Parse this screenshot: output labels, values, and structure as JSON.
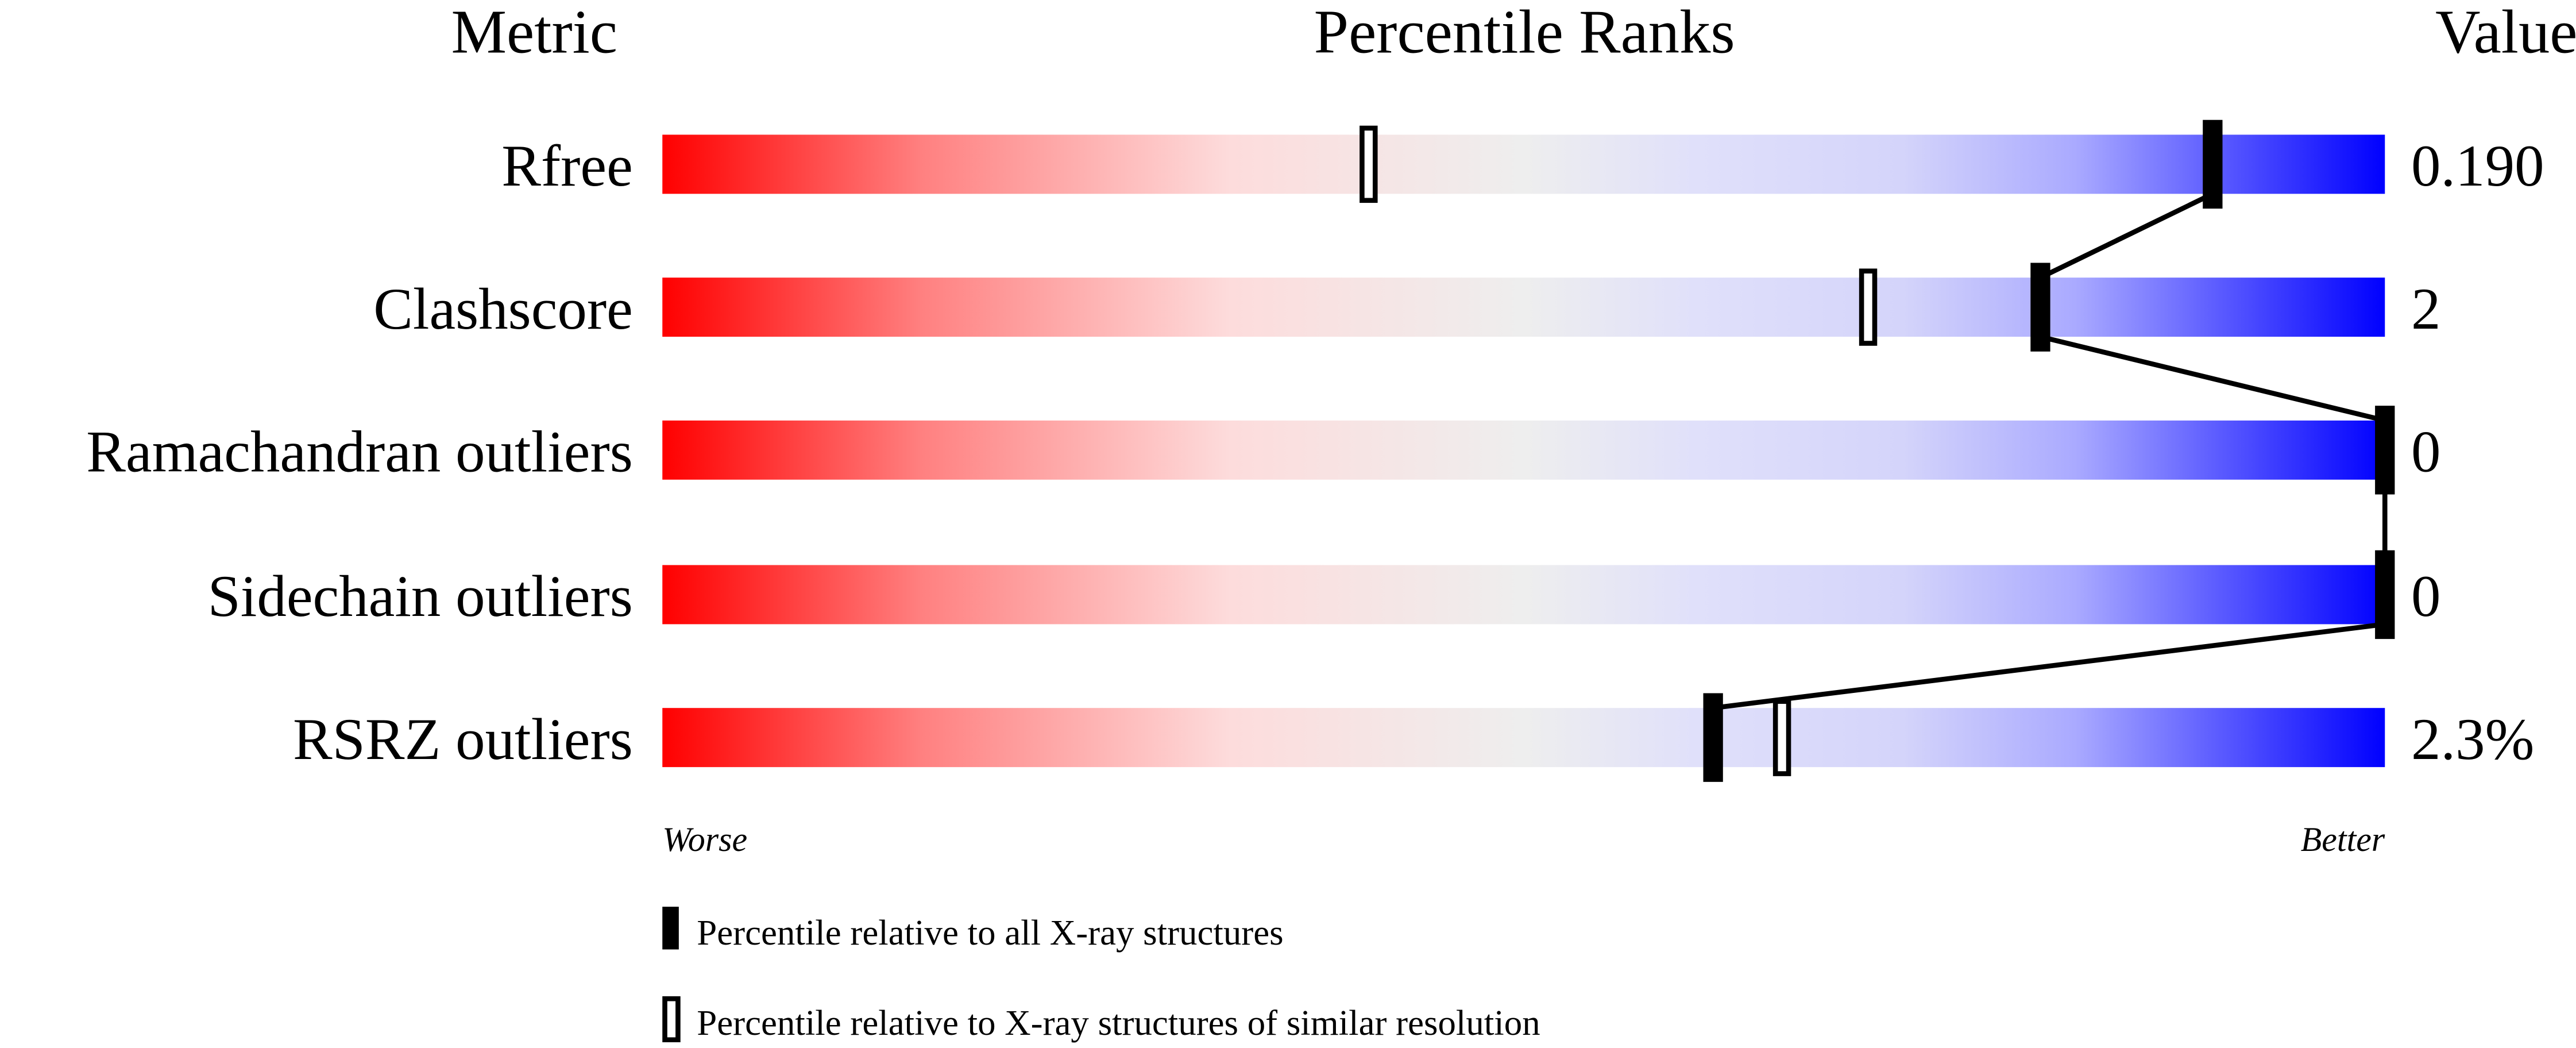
{
  "chart_data": {
    "type": "bar",
    "headers": {
      "metric": "Metric",
      "ranks": "Percentile Ranks",
      "value": "Value"
    },
    "xlim": [
      0,
      100
    ],
    "axis_left_label": "Worse",
    "axis_right_label": "Better",
    "metrics": [
      {
        "name": "Rfree",
        "value": "0.190",
        "percentile_all": 90,
        "percentile_similar": 41
      },
      {
        "name": "Clashscore",
        "value": "2",
        "percentile_all": 80,
        "percentile_similar": 70
      },
      {
        "name": "Ramachandran outliers",
        "value": "0",
        "percentile_all": 100,
        "percentile_similar": 100
      },
      {
        "name": "Sidechain outliers",
        "value": "0",
        "percentile_all": 100,
        "percentile_similar": 100
      },
      {
        "name": "RSRZ outliers",
        "value": "2.3%",
        "percentile_all": 61,
        "percentile_similar": 65
      }
    ],
    "legend": [
      {
        "marker": "filled",
        "label": "Percentile relative to all X-ray structures"
      },
      {
        "marker": "open",
        "label": "Percentile relative to X-ray structures of similar resolution"
      }
    ],
    "gradient_colors": {
      "worse": "#ff0000",
      "middle": "#eeeeee",
      "better": "#0000ff"
    }
  }
}
